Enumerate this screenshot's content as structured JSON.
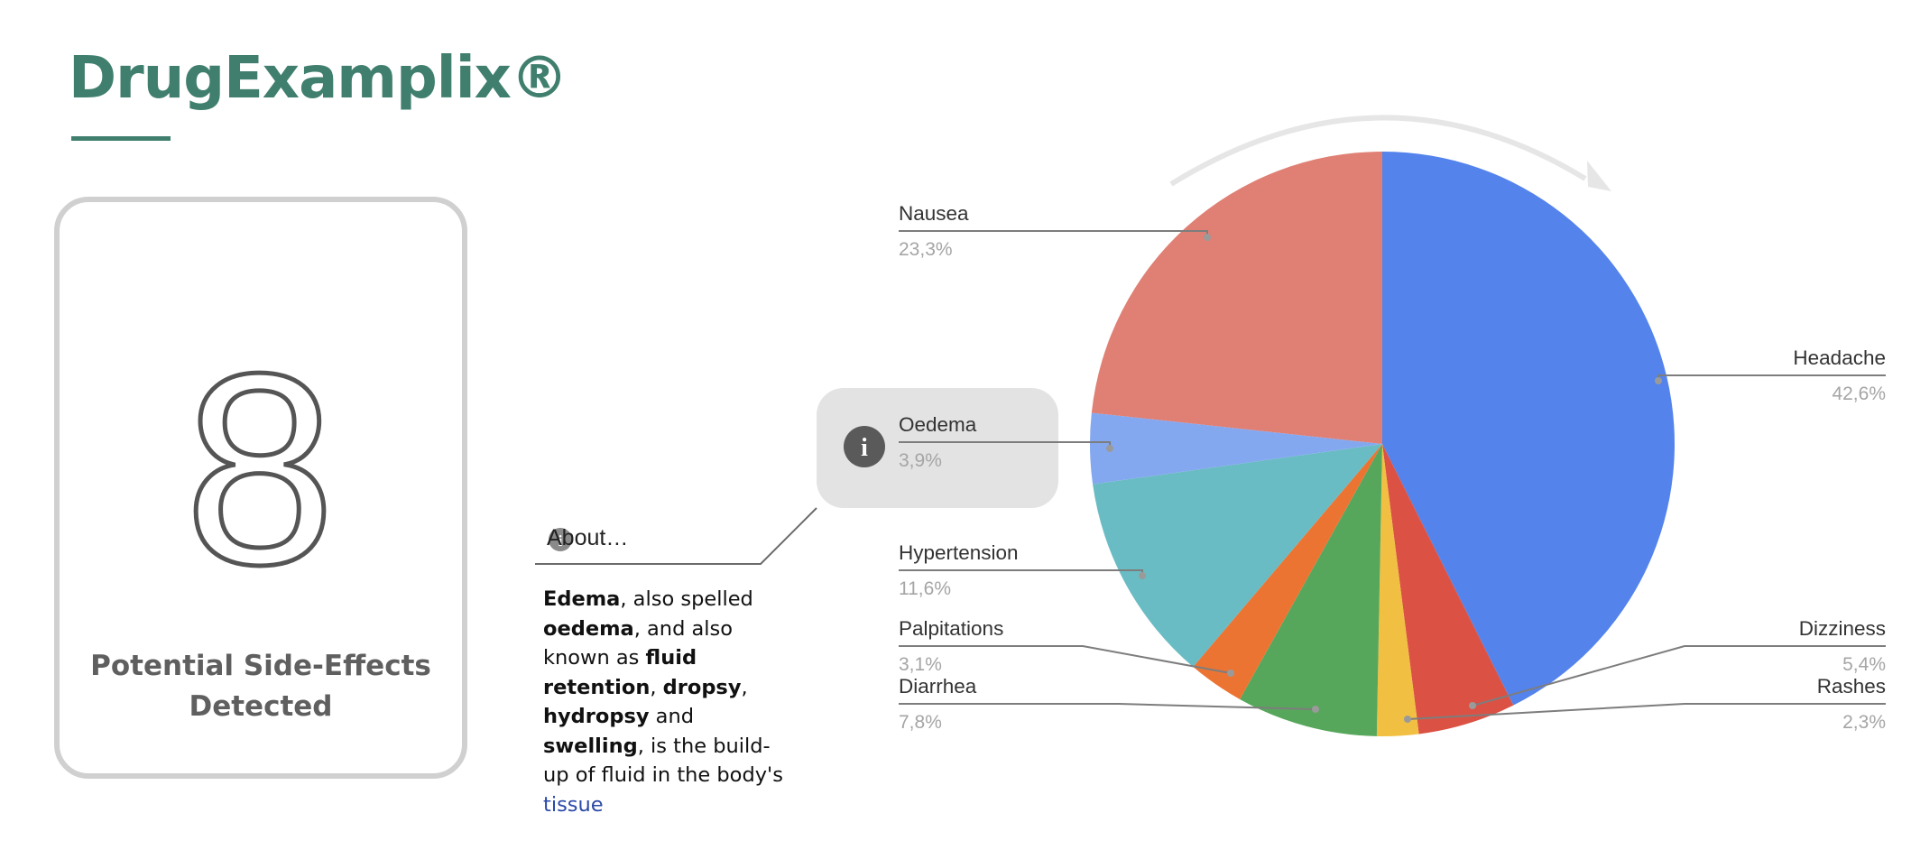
{
  "brand": {
    "title": "DrugExamplix®",
    "color": "#407f6e"
  },
  "card": {
    "count": "8",
    "label_line1": "Potential Side-Effects",
    "label_line2": "Detected"
  },
  "about": {
    "icon": "info-icon",
    "label": "About…",
    "segments": [
      {
        "text": "Edema",
        "bold": true
      },
      {
        "text": ", also spelled ",
        "bold": false
      },
      {
        "text": "oedema",
        "bold": true
      },
      {
        "text": ", and also known as ",
        "bold": false
      },
      {
        "text": "fluid retention",
        "bold": true
      },
      {
        "text": ", ",
        "bold": false
      },
      {
        "text": "dropsy",
        "bold": true
      },
      {
        "text": ", ",
        "bold": false
      },
      {
        "text": "hydropsy",
        "bold": true
      },
      {
        "text": " and ",
        "bold": false
      },
      {
        "text": "swelling",
        "bold": true
      },
      {
        "text": ", is the build-up of fluid in the body's ",
        "bold": false
      },
      {
        "text": "tissue",
        "bold": false,
        "link": true
      }
    ]
  },
  "chart_data": {
    "type": "pie",
    "direction": "clockwise",
    "start": "top",
    "highlighted": "Oedema",
    "slices": [
      {
        "name": "Headache",
        "value": 42.6,
        "label": "42,6%",
        "color": "#5483ec"
      },
      {
        "name": "Dizziness",
        "value": 5.4,
        "label": "5,4%",
        "color": "#db5244"
      },
      {
        "name": "Rashes",
        "value": 2.3,
        "label": "2,3%",
        "color": "#f1c042"
      },
      {
        "name": "Diarrhea",
        "value": 7.8,
        "label": "7,8%",
        "color": "#56a75b"
      },
      {
        "name": "Palpitations",
        "value": 3.1,
        "label": "3,1%",
        "color": "#ec7433"
      },
      {
        "name": "Hypertension",
        "value": 11.6,
        "label": "11,6%",
        "color": "#69bcc3"
      },
      {
        "name": "Oedema",
        "value": 3.9,
        "label": "3,9%",
        "color": "#84a8f0"
      },
      {
        "name": "Nausea",
        "value": 23.3,
        "label": "23,3%",
        "color": "#e07f74"
      }
    ]
  }
}
